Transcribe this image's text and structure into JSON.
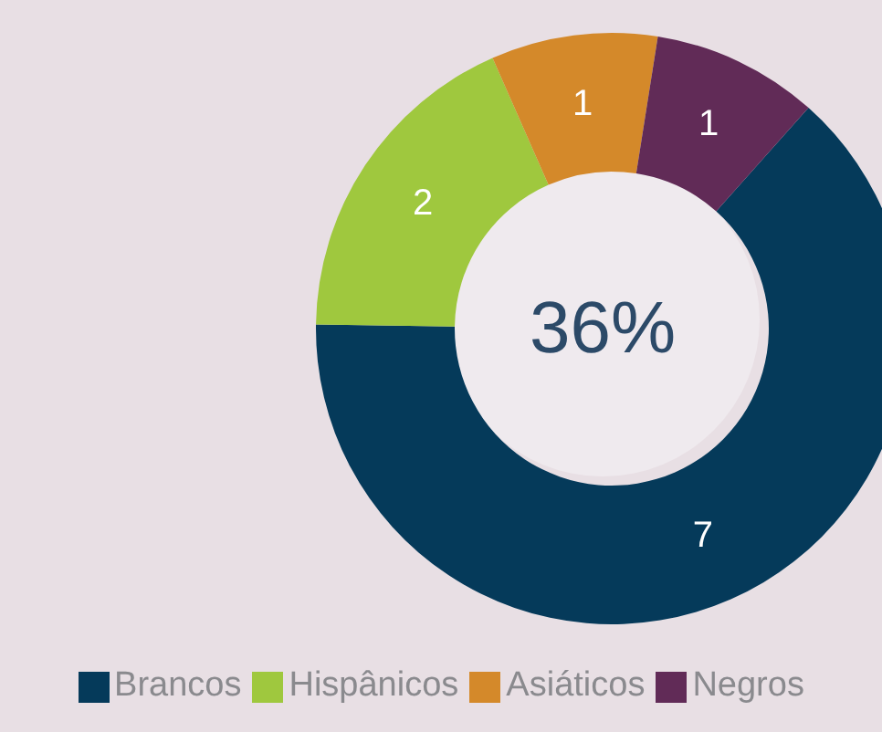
{
  "chart_data": {
    "type": "donut",
    "categories": [
      "Brancos",
      "Hispânicos",
      "Asiáticos",
      "Negros"
    ],
    "values": [
      7,
      2,
      1,
      1
    ],
    "colors": [
      "#053a5a",
      "#9fc83e",
      "#d4892a",
      "#612b57"
    ],
    "data_labels": true,
    "legend": "bottom",
    "annotations": [
      "36%"
    ]
  }
}
